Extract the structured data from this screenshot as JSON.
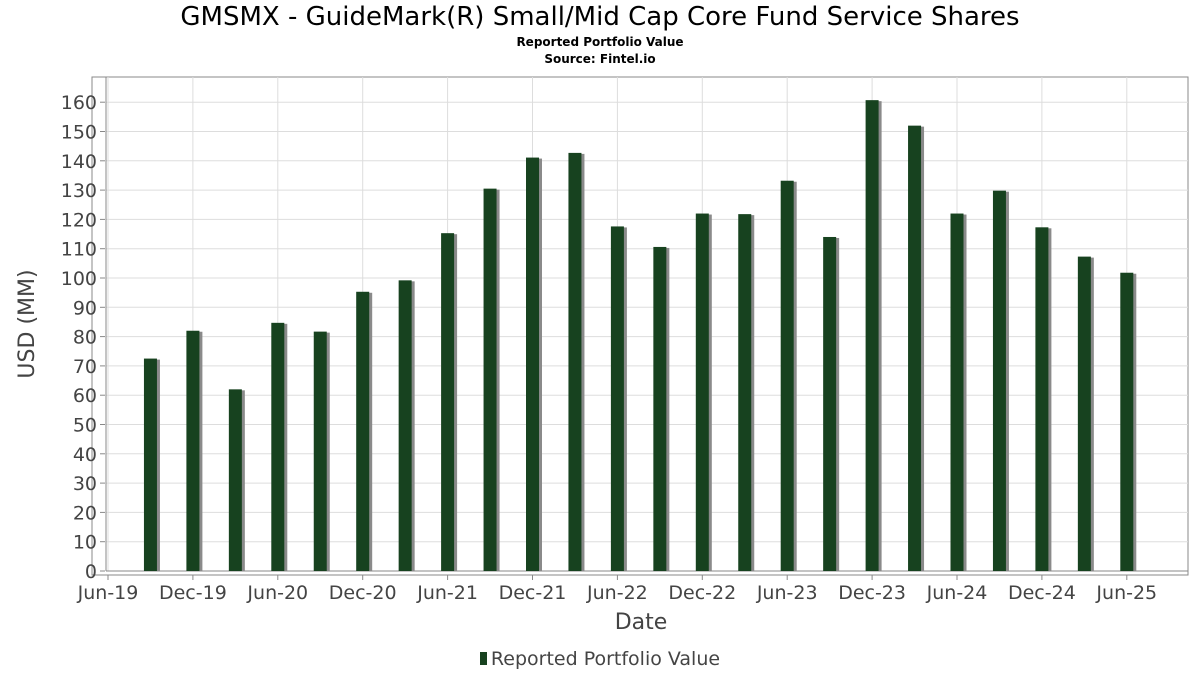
{
  "chart_data": {
    "type": "bar",
    "title": "GMSMX - GuideMark(R) Small/Mid Cap Core Fund Service Shares",
    "subtitle": "Reported Portfolio Value",
    "source": "Source: Fintel.io",
    "xlabel": "Date",
    "ylabel": "USD (MM)",
    "ylim": [
      0,
      165
    ],
    "yticks": [
      0,
      10,
      20,
      30,
      40,
      50,
      60,
      70,
      80,
      90,
      100,
      110,
      120,
      130,
      140,
      150,
      160
    ],
    "x_tick_labels": [
      "Jun-19",
      "Dec-19",
      "Jun-20",
      "Dec-20",
      "Jun-21",
      "Dec-21",
      "Jun-22",
      "Dec-22",
      "Jun-23",
      "Dec-23",
      "Jun-24",
      "Dec-24",
      "Jun-25"
    ],
    "x_range": [
      "2019-06",
      "2025-10"
    ],
    "grid": true,
    "legend_position": "bottom",
    "bar_color": "#17421f",
    "series": [
      {
        "name": "Reported Portfolio Value",
        "points": [
          {
            "x": "2019-09",
            "y": 72.5
          },
          {
            "x": "2019-12",
            "y": 82
          },
          {
            "x": "2020-03",
            "y": 62
          },
          {
            "x": "2020-06",
            "y": 84.7
          },
          {
            "x": "2020-09",
            "y": 81.7
          },
          {
            "x": "2020-12",
            "y": 95.3
          },
          {
            "x": "2021-03",
            "y": 99.2
          },
          {
            "x": "2021-06",
            "y": 115.3
          },
          {
            "x": "2021-09",
            "y": 130.5
          },
          {
            "x": "2021-12",
            "y": 141.1
          },
          {
            "x": "2022-03",
            "y": 142.7
          },
          {
            "x": "2022-06",
            "y": 117.6
          },
          {
            "x": "2022-09",
            "y": 110.6
          },
          {
            "x": "2022-12",
            "y": 122
          },
          {
            "x": "2023-03",
            "y": 121.8
          },
          {
            "x": "2023-06",
            "y": 133.2
          },
          {
            "x": "2023-09",
            "y": 114
          },
          {
            "x": "2023-12",
            "y": 160.7
          },
          {
            "x": "2024-03",
            "y": 152
          },
          {
            "x": "2024-06",
            "y": 122
          },
          {
            "x": "2024-09",
            "y": 129.8
          },
          {
            "x": "2024-12",
            "y": 117.3
          },
          {
            "x": "2025-03",
            "y": 107.3
          },
          {
            "x": "2025-06",
            "y": 101.8
          }
        ]
      }
    ]
  }
}
